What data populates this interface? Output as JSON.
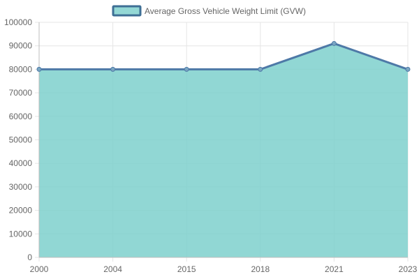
{
  "chart_data": {
    "type": "area",
    "categories": [
      "2000",
      "2004",
      "2015",
      "2018",
      "2021",
      "2023"
    ],
    "series": [
      {
        "name": "Average Gross Vehicle Weight Limit (GVW)",
        "values": [
          80000,
          80000,
          80000,
          80000,
          91000,
          80000
        ]
      }
    ],
    "title": "",
    "xlabel": "",
    "ylabel": "",
    "ylim": [
      0,
      100000
    ],
    "yticks": [
      "0",
      "10000",
      "20000",
      "30000",
      "40000",
      "50000",
      "60000",
      "70000",
      "80000",
      "90000",
      "100000"
    ],
    "grid": true,
    "legend_position": "top-center"
  },
  "colors": {
    "area_fill": "#7ed0cc",
    "line": "#4e79a7",
    "point_fill": "#7aa6c2",
    "grid": "#e5e5e5",
    "axis": "#bdbdbd",
    "legend_fill": "#94d8d5",
    "legend_border": "#3e6f95"
  }
}
